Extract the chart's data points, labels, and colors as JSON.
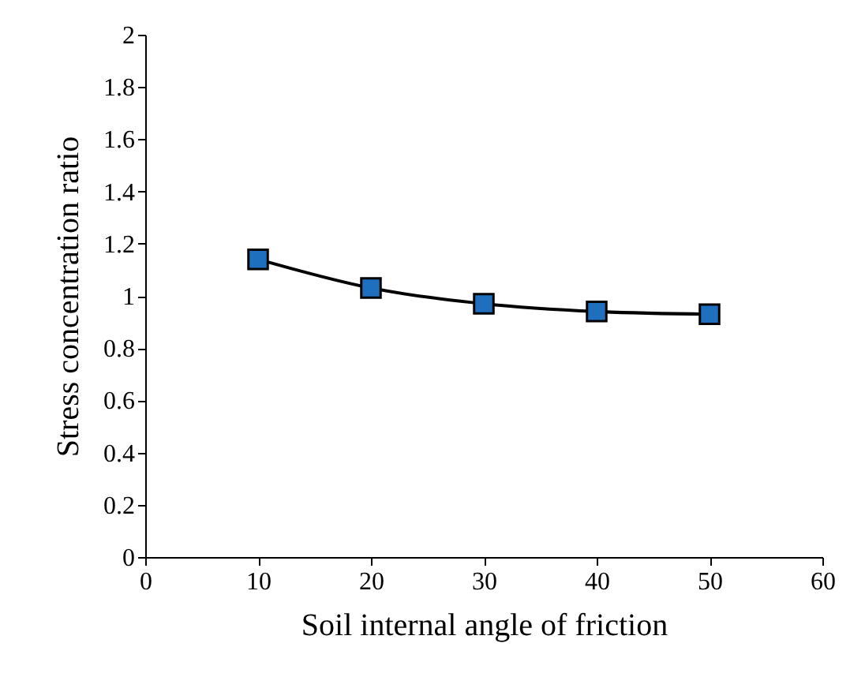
{
  "chart_data": {
    "type": "line",
    "xlabel": "Soil internal angle of friction",
    "ylabel": "Stress concentration ratio",
    "x": [
      10,
      20,
      30,
      40,
      50
    ],
    "series": [
      {
        "color": "#1f6fbf",
        "values": [
          1.14,
          1.03,
          0.97,
          0.94,
          0.93
        ]
      }
    ],
    "xlim": [
      0,
      60
    ],
    "xticks": [
      0,
      10,
      20,
      30,
      40,
      50,
      60
    ],
    "ylim": [
      0,
      2
    ],
    "yticks": [
      0,
      0.2,
      0.4,
      0.6,
      0.8,
      1,
      1.2,
      1.4,
      1.6,
      1.8,
      2
    ],
    "marker": "square",
    "line_style": "solid"
  }
}
